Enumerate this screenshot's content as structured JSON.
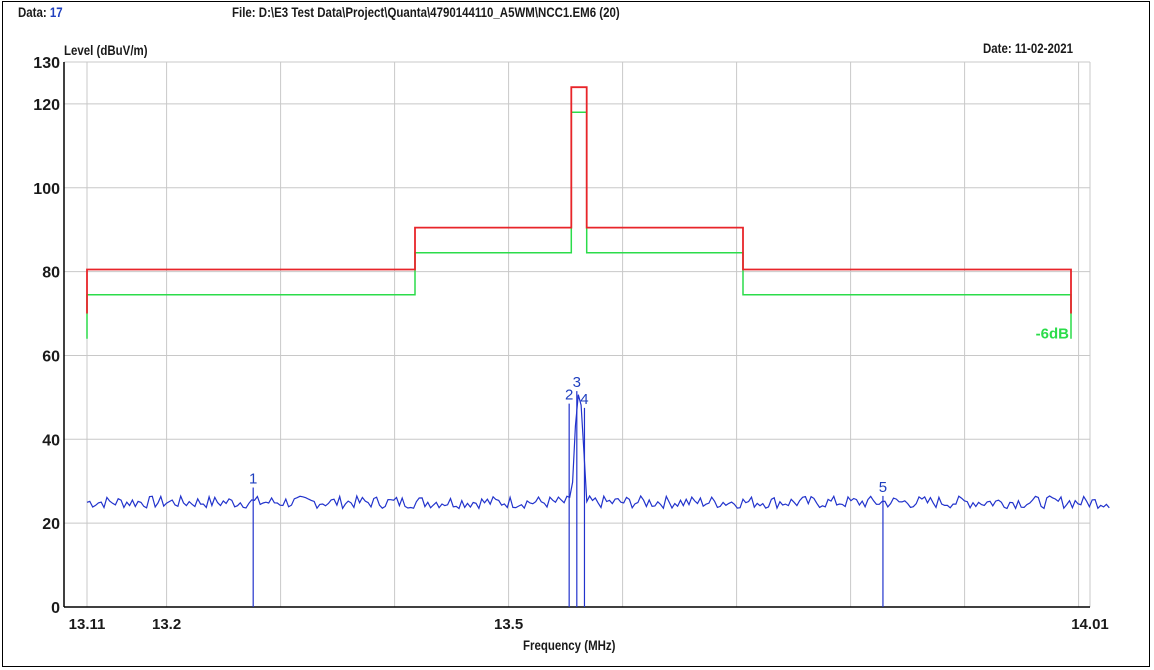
{
  "header": {
    "data_label": "Data:",
    "data_value": "17",
    "file": "File: D:\\E3 Test Data\\Project\\Quanta\\4790144110_A5WM\\NCC1.EM6  (20)",
    "date": "Date: 11-02-2021"
  },
  "colors": {
    "limit": "#e8252a",
    "margin": "#2bdc4a",
    "trace": "#2233cc",
    "grid": "#c8c8c8",
    "text_blue": "#1f3fbf",
    "text_green": "#2bdc4a"
  },
  "chart_data": {
    "type": "line",
    "xlabel": "Frequency (MHz)",
    "ylabel": "Level (dBuV/m)",
    "xlim": [
      13.11,
      14.01
    ],
    "ylim": [
      0,
      130
    ],
    "x_ticks": [
      {
        "value": 13.11,
        "label": "13.11"
      },
      {
        "value": 13.2,
        "label": "13.2"
      },
      {
        "value": 13.5,
        "label": "13.5"
      },
      {
        "value": 14.01,
        "label": "14.01"
      }
    ],
    "x_gridlines": [
      13.11,
      13.2,
      13.3,
      13.4,
      13.5,
      13.6,
      13.7,
      13.8,
      13.9,
      14.0,
      14.01
    ],
    "y_ticks": [
      0,
      20,
      40,
      60,
      80,
      100,
      120,
      130
    ],
    "grid": true,
    "limit_line": {
      "color": "#e8252a",
      "points": [
        [
          13.11,
          70
        ],
        [
          13.11,
          80.5
        ],
        [
          13.41,
          80.5
        ],
        [
          13.41,
          90.5
        ],
        [
          13.553,
          90.5
        ],
        [
          13.553,
          124
        ],
        [
          13.567,
          124
        ],
        [
          13.567,
          90.5
        ],
        [
          13.71,
          90.5
        ],
        [
          13.71,
          80.5
        ],
        [
          14.01,
          80.5
        ],
        [
          14.01,
          70
        ]
      ]
    },
    "margin_line": {
      "label": "-6dB",
      "color": "#2bdc4a",
      "points": [
        [
          13.11,
          64
        ],
        [
          13.11,
          74.5
        ],
        [
          13.41,
          74.5
        ],
        [
          13.41,
          84.5
        ],
        [
          13.553,
          84.5
        ],
        [
          13.553,
          118
        ],
        [
          13.567,
          118
        ],
        [
          13.567,
          84.5
        ],
        [
          13.71,
          84.5
        ],
        [
          13.71,
          74.5
        ],
        [
          14.01,
          74.5
        ],
        [
          14.01,
          64
        ]
      ]
    },
    "trace": {
      "color": "#2233cc",
      "noise_floor": 25,
      "noise_amplitude": 1.5,
      "peak": {
        "center": 13.56,
        "height": 51,
        "width": 0.008
      },
      "small_peaks": [
        {
          "center": 13.262,
          "height": 28.5,
          "width": 0.002
        },
        {
          "center": 13.838,
          "height": 26.5,
          "width": 0.002
        }
      ]
    },
    "markers": [
      {
        "label": "1",
        "x": 13.262,
        "y": 28.5
      },
      {
        "label": "2",
        "x": 13.551,
        "y": 48.5
      },
      {
        "label": "3",
        "x": 13.558,
        "y": 51.5
      },
      {
        "label": "4",
        "x": 13.565,
        "y": 47.5
      },
      {
        "label": "5",
        "x": 13.838,
        "y": 26.5
      }
    ]
  }
}
